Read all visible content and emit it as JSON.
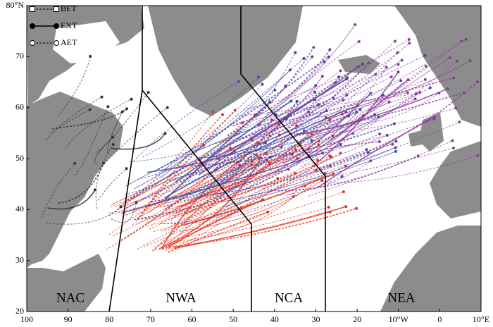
{
  "map": {
    "y_labels": [
      "20",
      "30",
      "40",
      "50",
      "60",
      "70",
      "80°N"
    ],
    "x_labels": [
      "100",
      "90",
      "80",
      "70",
      "60",
      "50",
      "40",
      "30",
      "20",
      "10°W",
      "0",
      "10°E"
    ],
    "regions": [
      "NAC",
      "NWA",
      "NCA",
      "NEA"
    ],
    "legend": [
      "BET",
      "EXT",
      "AET"
    ]
  }
}
